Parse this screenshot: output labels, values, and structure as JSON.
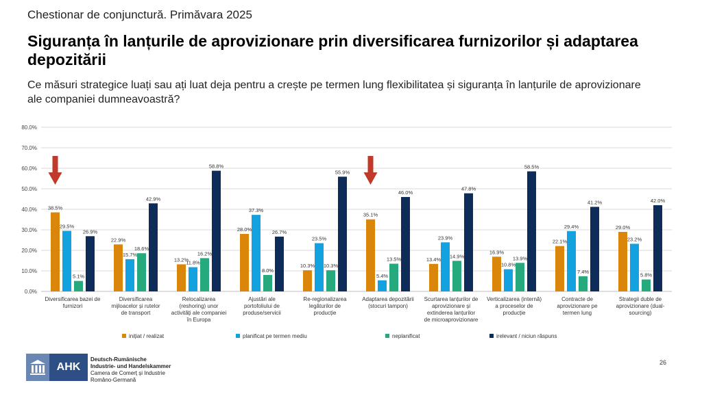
{
  "header": {
    "kicker": "Chestionar de conjunctură. Primăvara 2025",
    "title": "Siguranța în lanțurile de aprovizionare prin diversificarea furnizorilor și adaptarea depozitării",
    "subtitle": "Ce măsuri strategice luați sau ați luat deja pentru a crește pe termen lung flexibilitatea și siguranța în lanțurile de aprovizionare ale companiei dumneavoastră?"
  },
  "chart_data": {
    "type": "bar",
    "categories": [
      [
        "Diversificarea bazei de",
        "furnizori"
      ],
      [
        "Diversificarea",
        "mijloacelor și rutelor",
        "de transport"
      ],
      [
        "Relocalizarea",
        "(reshoring) unor",
        "activități ale companiei",
        "în Europa"
      ],
      [
        "Ajustări ale",
        "portofoliului de",
        "produse/servicii"
      ],
      [
        "Re-regionalizarea",
        "legăturilor de",
        "producție"
      ],
      [
        "Adaptarea depozitării",
        "(stocuri tampon)"
      ],
      [
        "Scurtarea lanțurilor de",
        "aprovizionare și",
        "extinderea lanțurilor",
        "de microaprovizionare"
      ],
      [
        "Verticalizarea (internă)",
        "a proceselor de",
        "producție"
      ],
      [
        "Contracte de",
        "aprovizionare pe",
        "termen lung"
      ],
      [
        "Strategii duble de",
        "aprovizionare (dual-",
        "sourcing)"
      ]
    ],
    "series": [
      {
        "name": "inițiat / realizat",
        "color": "#d9860b",
        "values": [
          38.5,
          22.9,
          13.2,
          28.0,
          10.3,
          35.1,
          13.4,
          16.9,
          22.1,
          29.0
        ]
      },
      {
        "name": "planificat pe termen mediu",
        "color": "#13a2df",
        "values": [
          29.5,
          15.7,
          11.8,
          37.3,
          23.5,
          5.4,
          23.9,
          10.8,
          29.4,
          23.2
        ]
      },
      {
        "name": "neplanificat",
        "color": "#26a97c",
        "values": [
          5.1,
          18.6,
          16.2,
          8.0,
          10.3,
          13.5,
          14.9,
          13.9,
          7.4,
          5.8
        ]
      },
      {
        "name": "irelevant / niciun răspuns",
        "color": "#0e2c5a",
        "values": [
          26.9,
          42.9,
          58.8,
          26.7,
          55.9,
          46.0,
          47.8,
          58.5,
          41.2,
          42.0
        ]
      }
    ],
    "yticks": [
      "0.0%",
      "10.0%",
      "20.0%",
      "30.0%",
      "40.0%",
      "50.0%",
      "60.0%",
      "70.0%",
      "80.0%"
    ],
    "ylim": [
      0,
      80
    ],
    "grid": true,
    "legend_position": "bottom",
    "highlight_arrows_on_categories": [
      0,
      5
    ],
    "arrow_color": "#c0392b"
  },
  "footer": {
    "logo_text": "AHK",
    "org_line1": "Deutsch-Rumänische",
    "org_line2": "Industrie- und Handelskammer",
    "org_line3": "Camera de Comerț și Industrie",
    "org_line4": "Româno-Germană",
    "page_number": "26"
  }
}
